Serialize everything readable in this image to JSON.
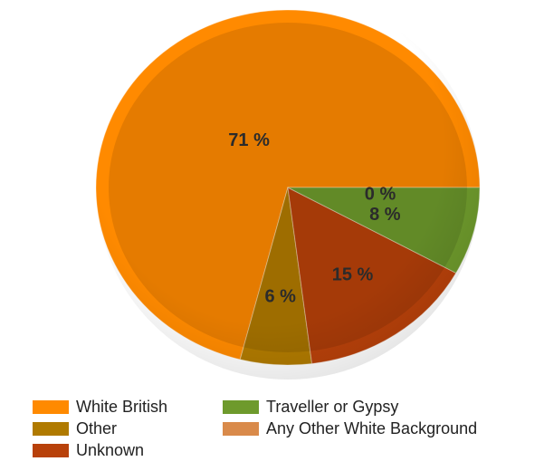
{
  "chart_data": {
    "type": "pie",
    "title": "",
    "categories": [
      "White British",
      "Other",
      "Unknown",
      "Traveller or Gypsy",
      "Any Other White Background"
    ],
    "values": [
      71,
      6,
      15,
      8,
      0
    ],
    "value_labels": [
      "71 %",
      "6 %",
      "15 %",
      "8 %",
      "0 %"
    ],
    "colors": [
      "#ff8a00",
      "#b07a00",
      "#b8410a",
      "#6e9a2c",
      "#d98a4a"
    ],
    "start_angle_deg": 0,
    "direction": "counterclockwise",
    "legend": {
      "placement": "bottom",
      "items": [
        {
          "label": "White British",
          "color": "#ff8a00"
        },
        {
          "label": "Traveller or Gypsy",
          "color": "#6e9a2c"
        },
        {
          "label": "Other",
          "color": "#b07a00"
        },
        {
          "label": "Any Other White Background",
          "color": "#d98a4a"
        },
        {
          "label": "Unknown",
          "color": "#b8410a"
        }
      ]
    }
  }
}
